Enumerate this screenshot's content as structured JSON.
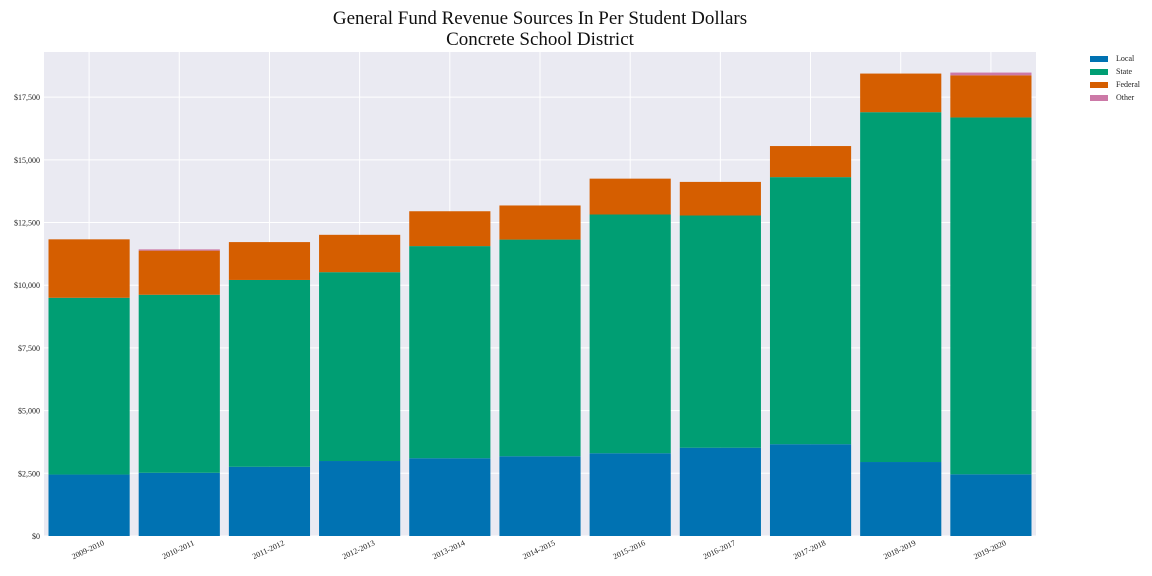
{
  "chart_data": {
    "type": "bar",
    "stacked": true,
    "title": "General Fund Revenue Sources In Per Student Dollars",
    "subtitle": "Concrete School District",
    "xlabel": "",
    "ylabel": "",
    "categories": [
      "2009-2010",
      "2010-2011",
      "2011-2012",
      "2012-2013",
      "2013-2014",
      "2014-2015",
      "2015-2016",
      "2016-2017",
      "2017-2018",
      "2018-2019",
      "2019-2020"
    ],
    "ylim": [
      0,
      19300
    ],
    "yticks": [
      0,
      2500,
      5000,
      7500,
      10000,
      12500,
      15000,
      17500
    ],
    "ytick_labels": [
      "$0",
      "$2,500",
      "$5,000",
      "$7,500",
      "$10,000",
      "$12,500",
      "$15,000",
      "$17,500"
    ],
    "grid": true,
    "legend_position": "right",
    "series": [
      {
        "name": "Local",
        "color": "#0072B2",
        "values": [
          2450,
          2520,
          2760,
          2990,
          3100,
          3180,
          3300,
          3520,
          3660,
          2950,
          2460
        ]
      },
      {
        "name": "State",
        "color": "#009E73",
        "values": [
          7050,
          7100,
          7450,
          7530,
          8460,
          8640,
          9520,
          9260,
          10650,
          13950,
          14230
        ]
      },
      {
        "name": "Federal",
        "color": "#D55E00",
        "values": [
          2330,
          1760,
          1510,
          1490,
          1390,
          1360,
          1430,
          1340,
          1240,
          1540,
          1680
        ]
      },
      {
        "name": "Other",
        "color": "#CC79A7",
        "values": [
          0,
          50,
          0,
          0,
          0,
          0,
          0,
          0,
          0,
          0,
          110
        ]
      }
    ]
  }
}
